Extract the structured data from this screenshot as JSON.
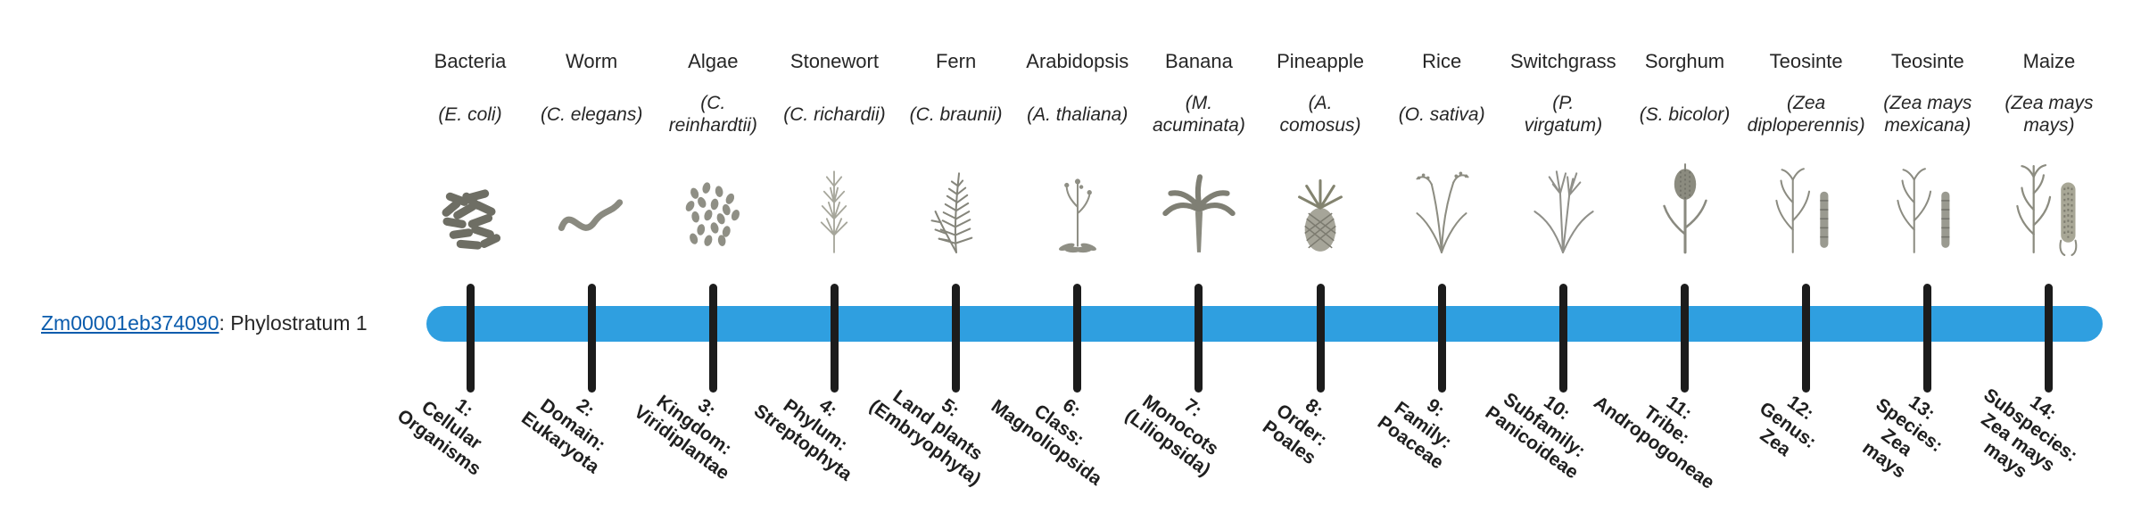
{
  "row": {
    "gene_id": "Zm00001eb374090",
    "separator": ": ",
    "label": "Phylostratum 1"
  },
  "theme": {
    "bar_color": "#2f9fe0",
    "tick_color": "#1c1c1c",
    "link_color": "#0b5cad"
  },
  "organisms": [
    {
      "name": "Bacteria",
      "sci_lines": [
        "(E. coli)"
      ],
      "icon": "bacteria",
      "stratum_lines": [
        "1:",
        "Cellular",
        "Organisms"
      ]
    },
    {
      "name": "Worm",
      "sci_lines": [
        "(C. elegans)"
      ],
      "icon": "worm",
      "stratum_lines": [
        "2:",
        "Domain:",
        "Eukaryota"
      ]
    },
    {
      "name": "Algae",
      "sci_lines": [
        "(C.",
        "reinhardtii)"
      ],
      "icon": "algae",
      "stratum_lines": [
        "3:",
        "Kingdom:",
        "Viridiplantae"
      ]
    },
    {
      "name": "Stonewort",
      "sci_lines": [
        "(C. richardii)"
      ],
      "icon": "stonewort",
      "stratum_lines": [
        "4:",
        "Phylum:",
        "Streptophyta"
      ]
    },
    {
      "name": "Fern",
      "sci_lines": [
        "(C. braunii)"
      ],
      "icon": "fern",
      "stratum_lines": [
        "5:",
        "Land plants",
        "(Embryophyta)"
      ]
    },
    {
      "name": "Arabidopsis",
      "sci_lines": [
        "(A. thaliana)"
      ],
      "icon": "arabidopsis",
      "stratum_lines": [
        "6:",
        "Class:",
        "Magnoliopsida"
      ]
    },
    {
      "name": "Banana",
      "sci_lines": [
        "(M.",
        "acuminata)"
      ],
      "icon": "banana",
      "stratum_lines": [
        "7:",
        "Monocots",
        "(Liliopsida)"
      ]
    },
    {
      "name": "Pineapple",
      "sci_lines": [
        "(A.",
        "comosus)"
      ],
      "icon": "pineapple",
      "stratum_lines": [
        "8:",
        "Order:",
        "Poales"
      ]
    },
    {
      "name": "Rice",
      "sci_lines": [
        "(O. sativa)"
      ],
      "icon": "rice",
      "stratum_lines": [
        "9:",
        "Family:",
        "Poaceae"
      ]
    },
    {
      "name": "Switchgrass",
      "sci_lines": [
        "(P.",
        "virgatum)"
      ],
      "icon": "switchgrass",
      "stratum_lines": [
        "10:",
        "Subfamily:",
        "Panicoideae"
      ]
    },
    {
      "name": "Sorghum",
      "sci_lines": [
        "(S. bicolor)"
      ],
      "icon": "sorghum",
      "stratum_lines": [
        "11:",
        "Tribe:",
        "Andropogoneae"
      ]
    },
    {
      "name": "Teosinte",
      "sci_lines": [
        "(Zea",
        "diploperennis)"
      ],
      "icon": "teosinte",
      "stratum_lines": [
        "12:",
        "Genus:",
        "Zea"
      ]
    },
    {
      "name": "Teosinte",
      "sci_lines": [
        "(Zea mays",
        "mexicana)"
      ],
      "icon": "teosinte",
      "stratum_lines": [
        "13:",
        "Species:",
        "Zea",
        "mays"
      ]
    },
    {
      "name": "Maize",
      "sci_lines": [
        "(Zea mays",
        "mays)"
      ],
      "icon": "maize",
      "stratum_lines": [
        "14:",
        "Subspecies:",
        "Zea mays",
        "mays"
      ]
    }
  ]
}
